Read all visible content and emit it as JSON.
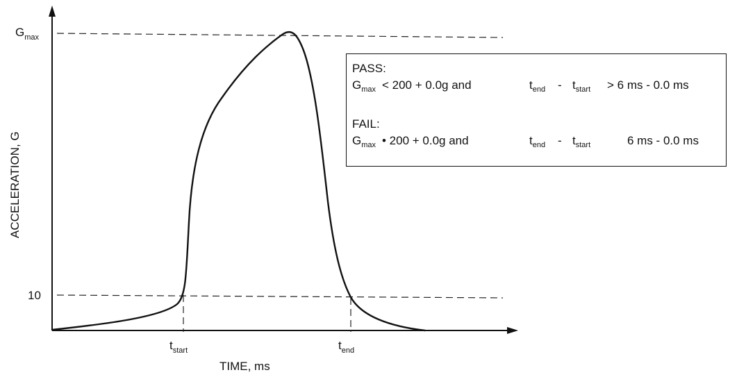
{
  "axes": {
    "ylabel": "ACCELERATION, G",
    "xlabel": "TIME, ms",
    "y_tick_gmax": {
      "main": "G",
      "sub": "max"
    },
    "y_tick_10": "10",
    "x_tick_tstart": {
      "main": "t",
      "sub": "start"
    },
    "x_tick_tend": {
      "main": "t",
      "sub": "end"
    }
  },
  "criteria": {
    "pass": {
      "header": "PASS:",
      "g": "G",
      "g_sub": "max",
      "cond": "< 200 + 0.0g and",
      "t1": "t",
      "t1_sub": "end",
      "minus": "-",
      "t2": "t",
      "t2_sub": "start",
      "cond2": "> 6 ms - 0.0 ms"
    },
    "fail": {
      "header": "FAIL:",
      "g": "G",
      "g_sub": "max",
      "cond": "• 200 + 0.0g and",
      "t1": "t",
      "t1_sub": "end",
      "minus": "-",
      "t2": "t",
      "t2_sub": "start",
      "cond2": "6 ms - 0.0 ms"
    }
  }
}
